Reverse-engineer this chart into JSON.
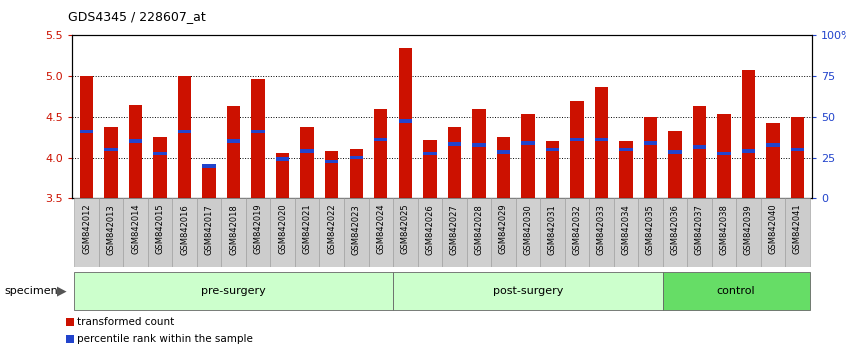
{
  "title": "GDS4345 / 228607_at",
  "categories": [
    "GSM842012",
    "GSM842013",
    "GSM842014",
    "GSM842015",
    "GSM842016",
    "GSM842017",
    "GSM842018",
    "GSM842019",
    "GSM842020",
    "GSM842021",
    "GSM842022",
    "GSM842023",
    "GSM842024",
    "GSM842025",
    "GSM842026",
    "GSM842027",
    "GSM842028",
    "GSM842029",
    "GSM842030",
    "GSM842031",
    "GSM842032",
    "GSM842033",
    "GSM842034",
    "GSM842035",
    "GSM842036",
    "GSM842037",
    "GSM842038",
    "GSM842039",
    "GSM842040",
    "GSM842041"
  ],
  "bar_values": [
    5.0,
    4.38,
    4.65,
    4.25,
    5.0,
    3.9,
    4.63,
    4.97,
    4.05,
    4.37,
    4.08,
    4.1,
    4.6,
    5.35,
    4.22,
    4.37,
    4.6,
    4.25,
    4.53,
    4.2,
    4.7,
    4.87,
    4.2,
    4.5,
    4.32,
    4.63,
    4.53,
    5.08,
    4.42,
    4.5
  ],
  "blue_marker_values": [
    4.32,
    4.1,
    4.2,
    4.05,
    4.32,
    3.9,
    4.2,
    4.32,
    3.98,
    4.08,
    3.95,
    4.0,
    4.22,
    4.45,
    4.05,
    4.17,
    4.15,
    4.07,
    4.18,
    4.1,
    4.22,
    4.22,
    4.1,
    4.18,
    4.07,
    4.13,
    4.05,
    4.08,
    4.15,
    4.1
  ],
  "groups": [
    {
      "label": "pre-surgery",
      "start": 0,
      "end": 13
    },
    {
      "label": "post-surgery",
      "start": 13,
      "end": 24
    },
    {
      "label": "control",
      "start": 24,
      "end": 30
    }
  ],
  "group_colors": [
    "#ccffcc",
    "#ccffcc",
    "#66dd66"
  ],
  "ylim": [
    3.5,
    5.5
  ],
  "yticks": [
    3.5,
    4.0,
    4.5,
    5.0,
    5.5
  ],
  "right_yticks_pct": [
    0,
    25,
    50,
    75,
    100
  ],
  "right_ytick_labels": [
    "0",
    "25",
    "50",
    "75",
    "100%"
  ],
  "bar_color": "#cc1100",
  "blue_color": "#2244cc",
  "bar_width": 0.55,
  "xtick_bg": "#cccccc",
  "specimen_label": "specimen",
  "legend_items": [
    {
      "color": "#cc1100",
      "label": "transformed count"
    },
    {
      "color": "#2244cc",
      "label": "percentile rank within the sample"
    }
  ]
}
